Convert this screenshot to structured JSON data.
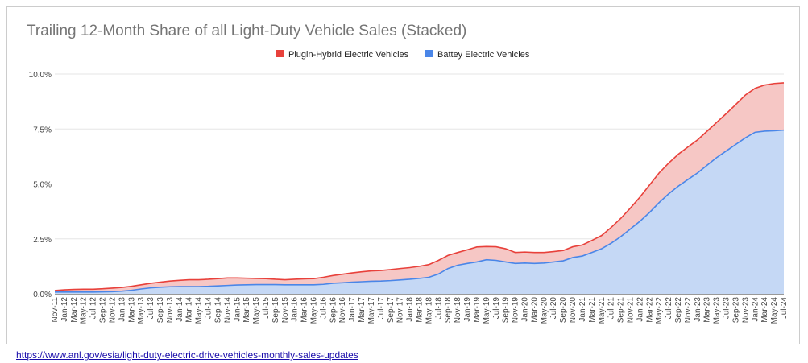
{
  "chart_data": {
    "type": "area",
    "stacked": true,
    "title": "Trailing 12-Month Share of all Light-Duty Vehicle Sales (Stacked)",
    "xlabel": "",
    "ylabel": "",
    "ylim": [
      0,
      10
    ],
    "y_ticks": [
      "0.0%",
      "2.5%",
      "5.0%",
      "7.5%",
      "10.0%"
    ],
    "y_tick_values": [
      0,
      2.5,
      5,
      7.5,
      10
    ],
    "grid": true,
    "legend_position": "top",
    "x_tick_labels": [
      "Nov-11",
      "Jan-12",
      "Mar-12",
      "May-12",
      "Jul-12",
      "Sep-12",
      "Nov-12",
      "Jan-13",
      "Mar-13",
      "May-13",
      "Jul-13",
      "Sep-13",
      "Nov-13",
      "Jan-14",
      "Mar-14",
      "May-14",
      "Jul-14",
      "Sep-14",
      "Nov-14",
      "Jan-15",
      "Mar-15",
      "May-15",
      "Jul-15",
      "Sep-15",
      "Nov-15",
      "Jan-16",
      "Mar-16",
      "May-16",
      "Jul-16",
      "Sep-16",
      "Nov-16",
      "Jan-17",
      "Mar-17",
      "May-17",
      "Jul-17",
      "Sep-17",
      "Nov-17",
      "Jan-18",
      "Mar-18",
      "May-18",
      "Jul-18",
      "Sep-18",
      "Nov-18",
      "Jan-19",
      "Mar-19",
      "May-19",
      "Jul-19",
      "Sep-19",
      "Nov-19",
      "Jan-20",
      "Mar-20",
      "May-20",
      "Jul-20",
      "Sep-20",
      "Nov-20",
      "Jan-21",
      "Mar-21",
      "May-21",
      "Jul-21",
      "Sep-21",
      "Nov-21",
      "Jan-22",
      "Mar-22",
      "May-22",
      "Jul-22",
      "Sep-22",
      "Nov-22",
      "Jan-23",
      "Mar-23",
      "May-23",
      "Jul-23",
      "Sep-23",
      "Nov-23",
      "Jan-24",
      "Mar-24",
      "May-24",
      "Jul-24"
    ],
    "series": [
      {
        "name": "Plugin-Hybrid Electric Vehicles",
        "color": "#e8413b",
        "fill": "#f6c7c5",
        "values": [
          0.07,
          0.1,
          0.12,
          0.13,
          0.13,
          0.14,
          0.16,
          0.17,
          0.18,
          0.19,
          0.21,
          0.23,
          0.26,
          0.28,
          0.31,
          0.31,
          0.32,
          0.33,
          0.34,
          0.32,
          0.3,
          0.28,
          0.27,
          0.24,
          0.23,
          0.25,
          0.27,
          0.28,
          0.32,
          0.35,
          0.39,
          0.42,
          0.45,
          0.47,
          0.48,
          0.5,
          0.52,
          0.53,
          0.55,
          0.58,
          0.62,
          0.6,
          0.58,
          0.62,
          0.68,
          0.6,
          0.62,
          0.6,
          0.5,
          0.5,
          0.5,
          0.48,
          0.47,
          0.47,
          0.49,
          0.5,
          0.55,
          0.6,
          0.72,
          0.83,
          0.95,
          1.1,
          1.25,
          1.35,
          1.4,
          1.45,
          1.48,
          1.5,
          1.55,
          1.6,
          1.7,
          1.82,
          1.95,
          2.0,
          2.1,
          2.15,
          2.15
        ]
      },
      {
        "name": "Battey Electric Vehicles",
        "color": "#4a86e8",
        "fill": "#c5d8f5",
        "values": [
          0.08,
          0.08,
          0.08,
          0.08,
          0.08,
          0.09,
          0.1,
          0.12,
          0.16,
          0.22,
          0.27,
          0.3,
          0.32,
          0.33,
          0.33,
          0.33,
          0.34,
          0.36,
          0.38,
          0.4,
          0.41,
          0.42,
          0.42,
          0.42,
          0.41,
          0.41,
          0.41,
          0.41,
          0.43,
          0.48,
          0.5,
          0.53,
          0.55,
          0.57,
          0.58,
          0.6,
          0.63,
          0.66,
          0.7,
          0.75,
          0.9,
          1.15,
          1.3,
          1.38,
          1.45,
          1.55,
          1.52,
          1.45,
          1.38,
          1.4,
          1.38,
          1.4,
          1.45,
          1.5,
          1.65,
          1.72,
          1.88,
          2.05,
          2.3,
          2.6,
          2.95,
          3.3,
          3.7,
          4.15,
          4.55,
          4.9,
          5.2,
          5.5,
          5.85,
          6.2,
          6.5,
          6.8,
          7.1,
          7.35,
          7.4,
          7.42,
          7.45
        ]
      }
    ]
  },
  "source_link": "https://www.anl.gov/esia/light-duty-electric-drive-vehicles-monthly-sales-updates"
}
